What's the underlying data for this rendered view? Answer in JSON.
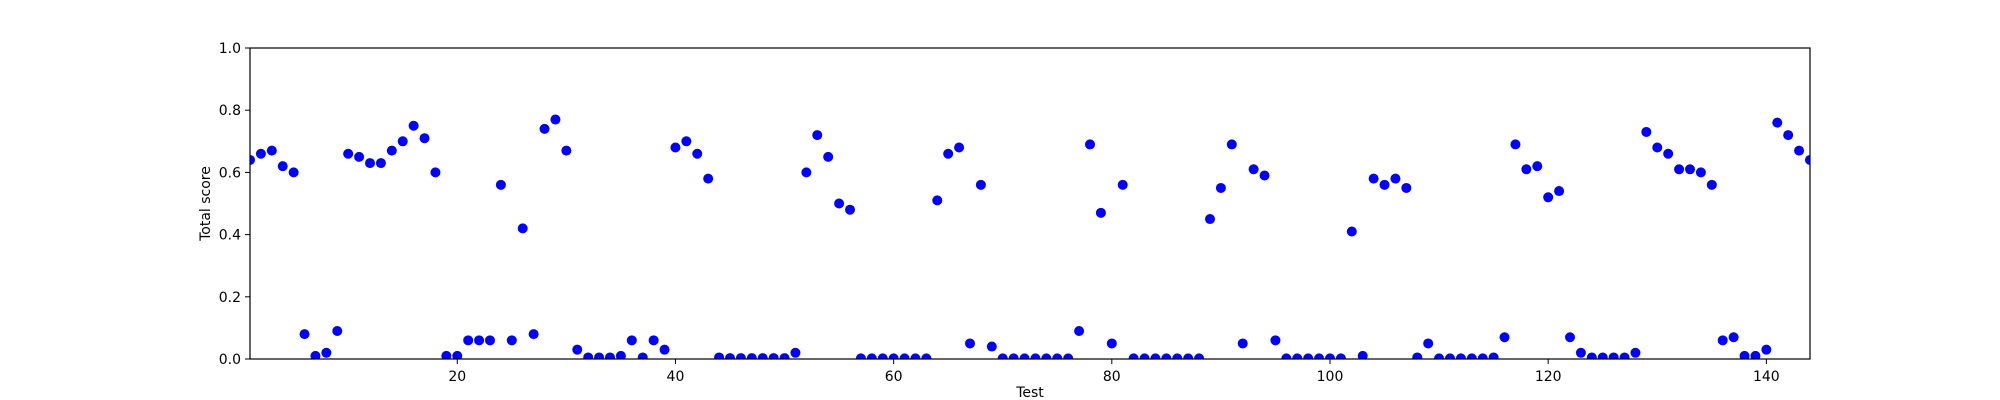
{
  "chart_data": {
    "type": "scatter",
    "title": "",
    "xlabel": "Test",
    "ylabel": "Total score",
    "xlim": [
      1,
      144
    ],
    "ylim": [
      0.0,
      1.0
    ],
    "xticks": [
      20,
      40,
      60,
      80,
      100,
      120,
      140
    ],
    "yticks": [
      0.0,
      0.2,
      0.4,
      0.6,
      0.8,
      1.0
    ],
    "xtick_labels": [
      "20",
      "40",
      "60",
      "80",
      "100",
      "120",
      "140"
    ],
    "ytick_labels": [
      "0.0",
      "0.2",
      "0.4",
      "0.6",
      "0.8",
      "1.0"
    ],
    "grid": false,
    "marker_color": "#0000ff",
    "x": [
      1,
      2,
      3,
      4,
      5,
      6,
      7,
      8,
      9,
      10,
      11,
      12,
      13,
      14,
      15,
      16,
      17,
      18,
      19,
      20,
      21,
      22,
      23,
      24,
      25,
      26,
      27,
      28,
      29,
      30,
      31,
      32,
      33,
      34,
      35,
      36,
      37,
      38,
      39,
      40,
      41,
      42,
      43,
      44,
      45,
      46,
      47,
      48,
      49,
      50,
      51,
      52,
      53,
      54,
      55,
      56,
      57,
      58,
      59,
      60,
      61,
      62,
      63,
      64,
      65,
      66,
      67,
      68,
      69,
      70,
      71,
      72,
      73,
      74,
      75,
      76,
      77,
      78,
      79,
      80,
      81,
      82,
      83,
      84,
      85,
      86,
      87,
      88,
      89,
      90,
      91,
      92,
      93,
      94,
      95,
      96,
      97,
      98,
      99,
      100,
      101,
      102,
      103,
      104,
      105,
      106,
      107,
      108,
      109,
      110,
      111,
      112,
      113,
      114,
      115,
      116,
      117,
      118,
      119,
      120,
      121,
      122,
      123,
      124,
      125,
      126,
      127,
      128,
      129,
      130,
      131,
      132,
      133,
      134,
      135,
      136,
      137,
      138,
      139,
      140,
      141,
      142,
      143,
      144
    ],
    "y": [
      0.64,
      0.66,
      0.67,
      0.62,
      0.6,
      0.08,
      0.01,
      0.02,
      0.09,
      0.66,
      0.65,
      0.63,
      0.63,
      0.67,
      0.7,
      0.75,
      0.71,
      0.6,
      0.01,
      0.01,
      0.06,
      0.06,
      0.06,
      0.56,
      0.06,
      0.42,
      0.08,
      0.74,
      0.77,
      0.67,
      0.03,
      0.005,
      0.005,
      0.005,
      0.01,
      0.06,
      0.005,
      0.06,
      0.03,
      0.68,
      0.7,
      0.66,
      0.58,
      0.005,
      0.003,
      0.003,
      0.003,
      0.003,
      0.003,
      0.003,
      0.02,
      0.6,
      0.72,
      0.65,
      0.5,
      0.48,
      0.002,
      0.002,
      0.002,
      0.002,
      0.002,
      0.002,
      0.002,
      0.51,
      0.66,
      0.68,
      0.05,
      0.56,
      0.04,
      0.002,
      0.002,
      0.002,
      0.002,
      0.002,
      0.002,
      0.002,
      0.09,
      0.69,
      0.47,
      0.05,
      0.56,
      0.002,
      0.002,
      0.002,
      0.002,
      0.002,
      0.002,
      0.002,
      0.45,
      0.55,
      0.69,
      0.05,
      0.61,
      0.59,
      0.06,
      0.002,
      0.002,
      0.002,
      0.002,
      0.002,
      0.002,
      0.41,
      0.01,
      0.58,
      0.56,
      0.58,
      0.55,
      0.005,
      0.05,
      0.002,
      0.002,
      0.002,
      0.002,
      0.002,
      0.005,
      0.07,
      0.69,
      0.61,
      0.62,
      0.52,
      0.54,
      0.07,
      0.02,
      0.005,
      0.005,
      0.005,
      0.005,
      0.02,
      0.73,
      0.68,
      0.66,
      0.61,
      0.61,
      0.6,
      0.56,
      0.06,
      0.07,
      0.01,
      0.01,
      0.03,
      0.76,
      0.72,
      0.67,
      0.64
    ]
  }
}
